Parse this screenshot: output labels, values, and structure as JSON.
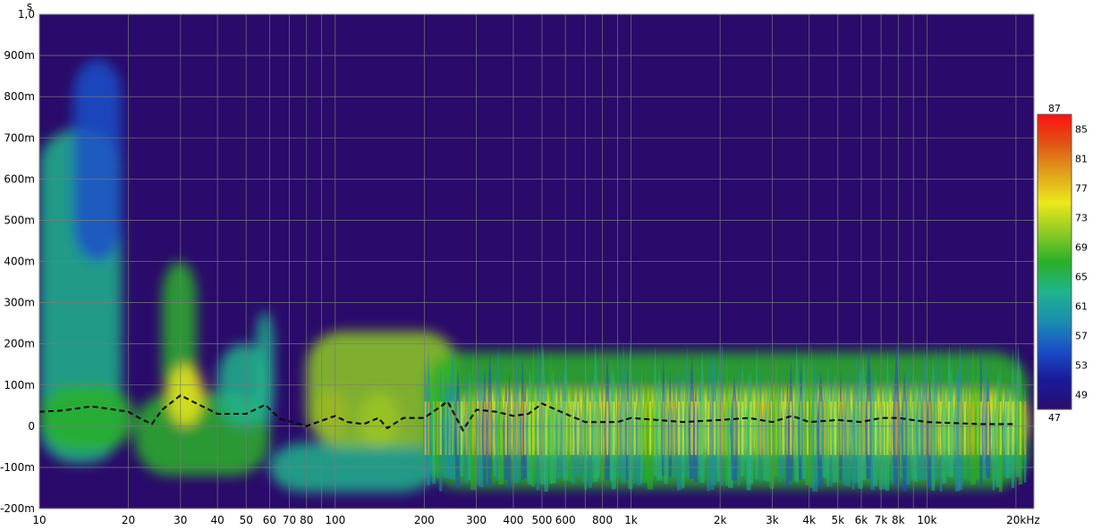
{
  "chart_data": {
    "type": "heatmap",
    "subtype": "spectrogram",
    "y_unit": "s",
    "x_scale": "log",
    "xlim": [
      10,
      23000
    ],
    "ylim": [
      -0.2,
      1.0
    ],
    "x_ticks": [
      {
        "value": 10,
        "label": "10"
      },
      {
        "value": 20,
        "label": "20"
      },
      {
        "value": 30,
        "label": "30"
      },
      {
        "value": 40,
        "label": "40"
      },
      {
        "value": 50,
        "label": "50"
      },
      {
        "value": 60,
        "label": "60"
      },
      {
        "value": 70,
        "label": "70"
      },
      {
        "value": 80,
        "label": "80"
      },
      {
        "value": 100,
        "label": "100"
      },
      {
        "value": 200,
        "label": "200"
      },
      {
        "value": 300,
        "label": "300"
      },
      {
        "value": 400,
        "label": "400"
      },
      {
        "value": 500,
        "label": "500"
      },
      {
        "value": 600,
        "label": "600"
      },
      {
        "value": 800,
        "label": "800"
      },
      {
        "value": 1000,
        "label": "1k"
      },
      {
        "value": 2000,
        "label": "2k"
      },
      {
        "value": 3000,
        "label": "3k"
      },
      {
        "value": 4000,
        "label": "4k"
      },
      {
        "value": 5000,
        "label": "5k"
      },
      {
        "value": 6000,
        "label": "6k"
      },
      {
        "value": 7000,
        "label": "7k"
      },
      {
        "value": 8000,
        "label": "8k"
      },
      {
        "value": 10000,
        "label": "10k"
      },
      {
        "value": 20000,
        "label": "20kHz"
      }
    ],
    "y_ticks": [
      {
        "value": 1.0,
        "label": "1,0"
      },
      {
        "value": 0.9,
        "label": "900m"
      },
      {
        "value": 0.8,
        "label": "800m"
      },
      {
        "value": 0.7,
        "label": "700m"
      },
      {
        "value": 0.6,
        "label": "600m"
      },
      {
        "value": 0.5,
        "label": "500m"
      },
      {
        "value": 0.4,
        "label": "400m"
      },
      {
        "value": 0.3,
        "label": "300m"
      },
      {
        "value": 0.2,
        "label": "200m"
      },
      {
        "value": 0.1,
        "label": "100m"
      },
      {
        "value": 0.0,
        "label": "0"
      },
      {
        "value": -0.1,
        "label": "-100m"
      },
      {
        "value": -0.2,
        "label": "-200m"
      }
    ],
    "colorbar": {
      "min": 47,
      "max": 87,
      "labels": [
        87,
        85,
        81,
        77,
        73,
        69,
        65,
        61,
        57,
        53,
        49,
        47
      ],
      "colors": [
        "#2a0d6e",
        "#1a1a9a",
        "#1a4fc8",
        "#1a8fb0",
        "#20b48c",
        "#28b028",
        "#8ecb24",
        "#ece81a",
        "#e0a21a",
        "#e05514",
        "#ff1010"
      ]
    },
    "background_color": "#2a0a6a",
    "grid": true,
    "peak_time_trace": {
      "style": "dashed",
      "color": "#000000",
      "points": [
        {
          "x": 10,
          "y": 0.035
        },
        {
          "x": 12,
          "y": 0.038
        },
        {
          "x": 15,
          "y": 0.048
        },
        {
          "x": 18,
          "y": 0.04
        },
        {
          "x": 20,
          "y": 0.035
        },
        {
          "x": 22,
          "y": 0.018
        },
        {
          "x": 24,
          "y": 0.005
        },
        {
          "x": 26,
          "y": 0.04
        },
        {
          "x": 30,
          "y": 0.075
        },
        {
          "x": 34,
          "y": 0.055
        },
        {
          "x": 40,
          "y": 0.03
        },
        {
          "x": 50,
          "y": 0.03
        },
        {
          "x": 58,
          "y": 0.052
        },
        {
          "x": 65,
          "y": 0.018
        },
        {
          "x": 80,
          "y": 0.0
        },
        {
          "x": 100,
          "y": 0.025
        },
        {
          "x": 110,
          "y": 0.01
        },
        {
          "x": 125,
          "y": 0.005
        },
        {
          "x": 140,
          "y": 0.02
        },
        {
          "x": 150,
          "y": -0.005
        },
        {
          "x": 170,
          "y": 0.02
        },
        {
          "x": 200,
          "y": 0.02
        },
        {
          "x": 240,
          "y": 0.06
        },
        {
          "x": 270,
          "y": -0.01
        },
        {
          "x": 300,
          "y": 0.04
        },
        {
          "x": 350,
          "y": 0.035
        },
        {
          "x": 400,
          "y": 0.025
        },
        {
          "x": 450,
          "y": 0.03
        },
        {
          "x": 500,
          "y": 0.055
        },
        {
          "x": 600,
          "y": 0.03
        },
        {
          "x": 700,
          "y": 0.01
        },
        {
          "x": 900,
          "y": 0.01
        },
        {
          "x": 1000,
          "y": 0.02
        },
        {
          "x": 1500,
          "y": 0.01
        },
        {
          "x": 2000,
          "y": 0.015
        },
        {
          "x": 2500,
          "y": 0.02
        },
        {
          "x": 3000,
          "y": 0.01
        },
        {
          "x": 3500,
          "y": 0.025
        },
        {
          "x": 4000,
          "y": 0.01
        },
        {
          "x": 5000,
          "y": 0.015
        },
        {
          "x": 6000,
          "y": 0.01
        },
        {
          "x": 7000,
          "y": 0.02
        },
        {
          "x": 8000,
          "y": 0.02
        },
        {
          "x": 10000,
          "y": 0.01
        },
        {
          "x": 15000,
          "y": 0.005
        },
        {
          "x": 20000,
          "y": 0.005
        }
      ]
    },
    "regions": [
      {
        "x_from": 10,
        "x_to": 19,
        "y_from": -0.09,
        "y_to": 0.72,
        "level": 61
      },
      {
        "x_from": 13,
        "x_to": 19,
        "y_from": 0.4,
        "y_to": 0.89,
        "level": 54
      },
      {
        "x_from": 10,
        "x_to": 21,
        "y_from": -0.06,
        "y_to": 0.1,
        "level": 68
      },
      {
        "x_from": 21,
        "x_to": 60,
        "y_from": -0.12,
        "y_to": 0.08,
        "level": 66
      },
      {
        "x_from": 26,
        "x_to": 34,
        "y_from": 0.05,
        "y_to": 0.4,
        "level": 66
      },
      {
        "x_from": 27,
        "x_to": 36,
        "y_from": 0.0,
        "y_to": 0.15,
        "level": 75
      },
      {
        "x_from": 40,
        "x_to": 60,
        "y_from": 0.0,
        "y_to": 0.2,
        "level": 62
      },
      {
        "x_from": 54,
        "x_to": 62,
        "y_from": 0.0,
        "y_to": 0.28,
        "level": 64
      },
      {
        "x_from": 60,
        "x_to": 220,
        "y_from": -0.16,
        "y_to": -0.04,
        "level": 62
      },
      {
        "x_from": 85,
        "x_to": 110,
        "y_from": -0.03,
        "y_to": 0.09,
        "level": 82
      },
      {
        "x_from": 120,
        "x_to": 165,
        "y_from": -0.05,
        "y_to": 0.08,
        "level": 80
      },
      {
        "x_from": 80,
        "x_to": 260,
        "y_from": -0.05,
        "y_to": 0.23,
        "level": 70
      },
      {
        "x_from": 200,
        "x_to": 22000,
        "y_from": -0.15,
        "y_to": 0.18,
        "level": 65
      },
      {
        "x_from": 250,
        "x_to": 22000,
        "y_from": -0.06,
        "y_to": 0.08,
        "level": 73
      }
    ]
  }
}
